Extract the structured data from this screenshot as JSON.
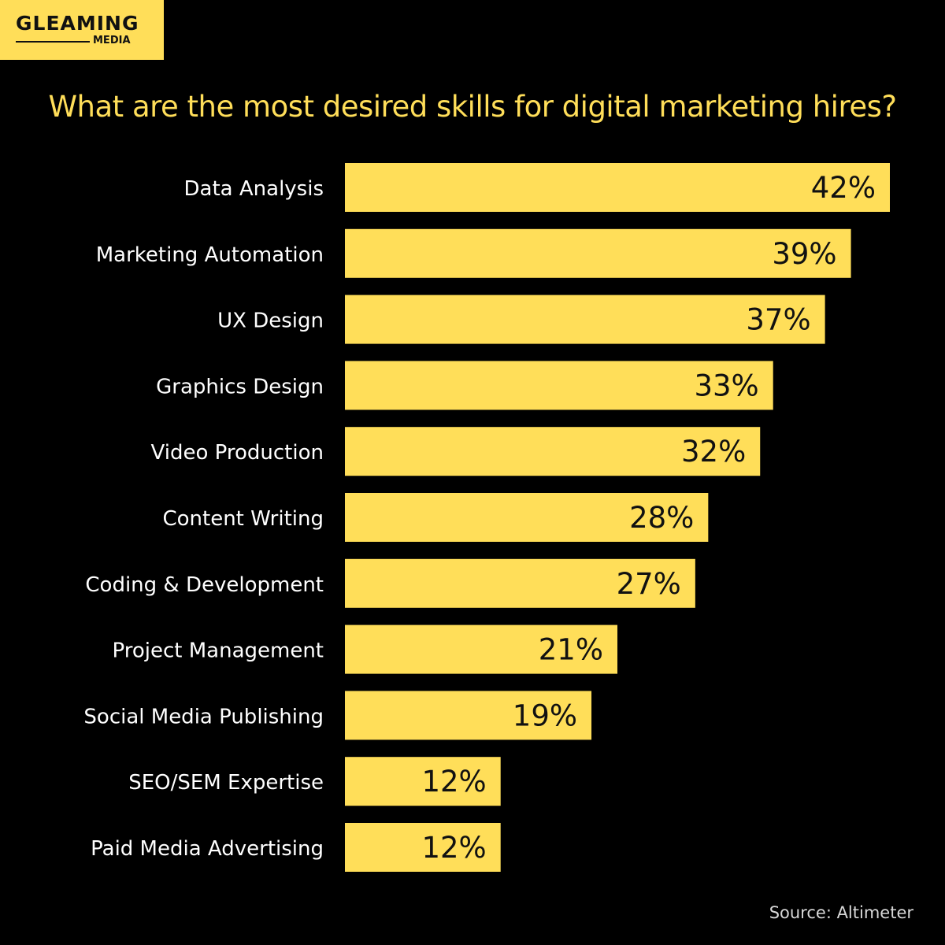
{
  "brand": {
    "logo_main": "GLEAMING",
    "logo_sub": "MEDIA"
  },
  "colors": {
    "background": "#000000",
    "accent": "#ffde59",
    "text": "#ffffff",
    "bar_text": "#111111"
  },
  "chart_data": {
    "type": "bar",
    "orientation": "horizontal",
    "title": "What are the most desired skills for digital marketing hires?",
    "categories": [
      "Data Analysis",
      "Marketing Automation",
      "UX Design",
      "Graphics Design",
      "Video Production",
      "Content Writing",
      "Coding & Development",
      "Project Management",
      "Social Media Publishing",
      "SEO/SEM Expertise",
      "Paid Media Advertising"
    ],
    "values": [
      42,
      39,
      37,
      33,
      32,
      28,
      27,
      21,
      19,
      12,
      12
    ],
    "value_labels": [
      "42%",
      "39%",
      "37%",
      "33%",
      "32%",
      "28%",
      "27%",
      "21%",
      "19%",
      "12%",
      "12%"
    ],
    "xlim": [
      0,
      42
    ],
    "grid": false,
    "legend": "none"
  },
  "source": "Source: Altimeter"
}
